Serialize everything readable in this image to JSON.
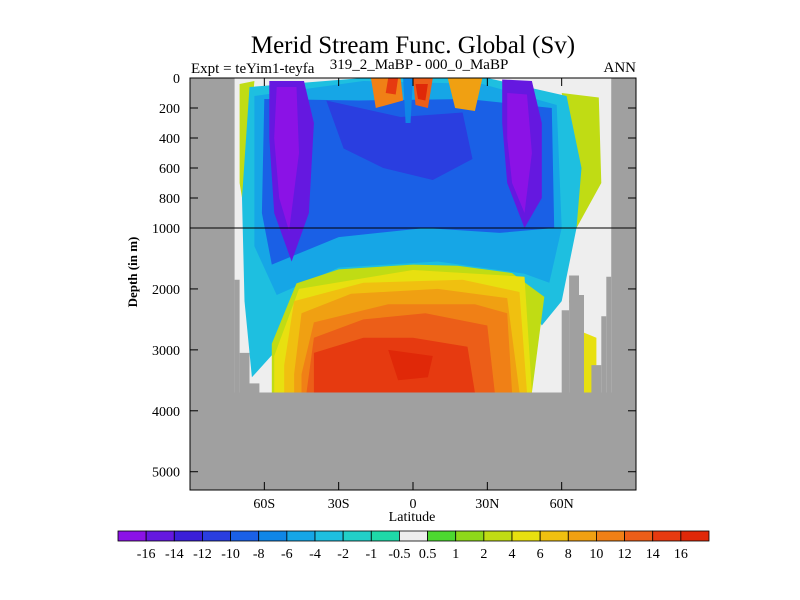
{
  "chart_data": {
    "type": "heatmap",
    "title": "Merid Stream Func. Global (Sv)",
    "subtitle_left": "Expt = teYim1-teyfa",
    "subtitle_center": "319_2_MaBP - 000_0_MaBP",
    "subtitle_right": "ANN",
    "xlabel": "Latitude",
    "ylabel": "Depth (in m)",
    "x_range": [
      -90,
      90
    ],
    "x_ticks": [
      {
        "value": -60,
        "label": "60S"
      },
      {
        "value": -30,
        "label": "30S"
      },
      {
        "value": 0,
        "label": "0"
      },
      {
        "value": 30,
        "label": "30N"
      },
      {
        "value": 60,
        "label": "60N"
      }
    ],
    "y_upper": {
      "range": [
        0,
        1000
      ],
      "ticks": [
        0,
        200,
        400,
        600,
        800,
        1000
      ]
    },
    "y_lower": {
      "range": [
        1000,
        5300
      ],
      "ticks": [
        2000,
        3000,
        4000,
        5000
      ]
    },
    "reference_line_depth": 1000,
    "missing_color": "#a0a0a0",
    "colorbar": {
      "labels": [
        "-16",
        "-14",
        "-12",
        "-10",
        "-8",
        "-6",
        "-4",
        "-2",
        "-1",
        "-0.5",
        "0.5",
        "1",
        "2",
        "4",
        "6",
        "8",
        "10",
        "12",
        "14",
        "16"
      ],
      "colors": [
        "#8b12e6",
        "#6518e0",
        "#3b1fd8",
        "#2a3ee0",
        "#1a60e6",
        "#0f86e6",
        "#16a6e6",
        "#1ebfe0",
        "#22cfc8",
        "#1fd8a8",
        "#eeeeee",
        "#4cd830",
        "#8ed81a",
        "#c0dc14",
        "#e8e010",
        "#f0c010",
        "#f0a012",
        "#f08016",
        "#ec5e18",
        "#e63a10",
        "#e02808"
      ]
    },
    "cells": [
      {
        "value": 0,
        "polygon": [
          [
            -72,
            0
          ],
          [
            80,
            0
          ],
          [
            80,
            3700
          ],
          [
            -72,
            3700
          ]
        ]
      },
      {
        "value": 3,
        "polygon": [
          [
            -70,
            40
          ],
          [
            -64,
            20
          ],
          [
            -66,
            400
          ],
          [
            -68,
            900
          ],
          [
            -70,
            700
          ]
        ]
      },
      {
        "value": 3,
        "polygon": [
          [
            60,
            100
          ],
          [
            75,
            130
          ],
          [
            76,
            700
          ],
          [
            66,
            1000
          ],
          [
            64,
            400
          ]
        ]
      },
      {
        "value": -3,
        "polygon": [
          [
            -66,
            60
          ],
          [
            -20,
            0
          ],
          [
            30,
            0
          ],
          [
            62,
            120
          ],
          [
            68,
            600
          ],
          [
            66,
            1000
          ],
          [
            60,
            2200
          ],
          [
            52,
            2600
          ],
          [
            42,
            1900
          ],
          [
            20,
            1660
          ],
          [
            0,
            1650
          ],
          [
            -20,
            1780
          ],
          [
            -40,
            1900
          ],
          [
            -55,
            3000
          ],
          [
            -65,
            3450
          ],
          [
            -68,
            2200
          ],
          [
            -69,
            800
          ]
        ]
      },
      {
        "value": -6,
        "polygon": [
          [
            -64,
            120
          ],
          [
            -20,
            20
          ],
          [
            28,
            40
          ],
          [
            58,
            180
          ],
          [
            60,
            1000
          ],
          [
            55,
            1900
          ],
          [
            45,
            1750
          ],
          [
            10,
            1550
          ],
          [
            -30,
            1650
          ],
          [
            -55,
            2100
          ],
          [
            -64,
            1300
          ]
        ]
      },
      {
        "value": -9,
        "polygon": [
          [
            -60,
            140
          ],
          [
            -22,
            150
          ],
          [
            22,
            140
          ],
          [
            56,
            200
          ],
          [
            57,
            1000
          ],
          [
            35,
            1080
          ],
          [
            5,
            1000
          ],
          [
            -30,
            1150
          ],
          [
            -57,
            1600
          ],
          [
            -61,
            900
          ]
        ]
      },
      {
        "value": -11,
        "polygon": [
          [
            -35,
            150
          ],
          [
            -5,
            260
          ],
          [
            20,
            230
          ],
          [
            24,
            540
          ],
          [
            8,
            680
          ],
          [
            -12,
            600
          ],
          [
            -28,
            470
          ]
        ]
      },
      {
        "value": -15,
        "polygon": [
          [
            -58,
            20
          ],
          [
            -44,
            20
          ],
          [
            -40,
            300
          ],
          [
            -42,
            900
          ],
          [
            -49,
            1550
          ],
          [
            -56,
            900
          ],
          [
            -58,
            400
          ]
        ]
      },
      {
        "value": -15,
        "polygon": [
          [
            36,
            10
          ],
          [
            48,
            20
          ],
          [
            52,
            300
          ],
          [
            52,
            800
          ],
          [
            45,
            1000
          ],
          [
            38,
            700
          ],
          [
            36,
            300
          ]
        ]
      },
      {
        "value": -17,
        "polygon": [
          [
            -55,
            60
          ],
          [
            -47,
            60
          ],
          [
            -46,
            500
          ],
          [
            -50,
            1050
          ],
          [
            -54,
            800
          ],
          [
            -56,
            400
          ]
        ]
      },
      {
        "value": -17,
        "polygon": [
          [
            38,
            100
          ],
          [
            46,
            110
          ],
          [
            48,
            500
          ],
          [
            45,
            900
          ],
          [
            40,
            700
          ],
          [
            38,
            400
          ]
        ]
      },
      {
        "value": 3,
        "polygon": [
          [
            -47,
            1910
          ],
          [
            -30,
            1680
          ],
          [
            0,
            1600
          ],
          [
            18,
            1620
          ],
          [
            40,
            1740
          ],
          [
            53,
            2130
          ],
          [
            48,
            3700
          ],
          [
            -57,
            3700
          ],
          [
            -57,
            2900
          ]
        ]
      },
      {
        "value": 5,
        "polygon": [
          [
            -46,
            2000
          ],
          [
            0,
            1690
          ],
          [
            45,
            1800
          ],
          [
            48,
            3700
          ],
          [
            -56,
            3700
          ],
          [
            -56,
            3100
          ]
        ]
      },
      {
        "value": 7,
        "polygon": [
          [
            -48,
            2200
          ],
          [
            -20,
            1900
          ],
          [
            20,
            1850
          ],
          [
            43,
            2050
          ],
          [
            46,
            3700
          ],
          [
            -52,
            3700
          ],
          [
            -52,
            3250
          ]
        ]
      },
      {
        "value": 9,
        "polygon": [
          [
            -45,
            2400
          ],
          [
            -25,
            2080
          ],
          [
            10,
            2000
          ],
          [
            38,
            2150
          ],
          [
            43,
            3700
          ],
          [
            -48,
            3700
          ],
          [
            -48,
            3400
          ]
        ]
      },
      {
        "value": 11,
        "polygon": [
          [
            -40,
            2550
          ],
          [
            -10,
            2250
          ],
          [
            25,
            2250
          ],
          [
            38,
            2400
          ],
          [
            40,
            3700
          ],
          [
            -45,
            3700
          ],
          [
            -45,
            3400
          ]
        ]
      },
      {
        "value": 13,
        "polygon": [
          [
            -40,
            2800
          ],
          [
            -20,
            2500
          ],
          [
            5,
            2400
          ],
          [
            30,
            2600
          ],
          [
            33,
            3700
          ],
          [
            -43,
            3700
          ]
        ]
      },
      {
        "value": 15,
        "polygon": [
          [
            -40,
            3050
          ],
          [
            -20,
            2800
          ],
          [
            0,
            2800
          ],
          [
            22,
            2950
          ],
          [
            25,
            3700
          ],
          [
            -40,
            3700
          ]
        ]
      },
      {
        "value": 17,
        "polygon": [
          [
            -10,
            3000
          ],
          [
            8,
            3100
          ],
          [
            6,
            3450
          ],
          [
            -6,
            3500
          ]
        ]
      },
      {
        "value": 10,
        "polygon": [
          [
            -17,
            0
          ],
          [
            -5,
            0
          ],
          [
            -4,
            150
          ],
          [
            -15,
            200
          ]
        ]
      },
      {
        "value": 15,
        "polygon": [
          [
            -10,
            0
          ],
          [
            -6,
            0
          ],
          [
            -7,
            110
          ],
          [
            -11,
            100
          ]
        ]
      },
      {
        "value": -8,
        "polygon": [
          [
            -4,
            0
          ],
          [
            0,
            0
          ],
          [
            -1,
            300
          ],
          [
            -3,
            300
          ]
        ]
      },
      {
        "value": 12,
        "polygon": [
          [
            0,
            0
          ],
          [
            8,
            0
          ],
          [
            6,
            200
          ],
          [
            1,
            180
          ]
        ]
      },
      {
        "value": 17,
        "polygon": [
          [
            1,
            40
          ],
          [
            6,
            40
          ],
          [
            5,
            150
          ],
          [
            2,
            140
          ]
        ]
      },
      {
        "value": 8,
        "polygon": [
          [
            14,
            0
          ],
          [
            28,
            0
          ],
          [
            25,
            220
          ],
          [
            17,
            200
          ]
        ]
      },
      {
        "value": 0,
        "polygon": [
          [
            65,
            1900
          ],
          [
            77,
            1800
          ],
          [
            78,
            2700
          ],
          [
            68,
            2600
          ]
        ]
      },
      {
        "value": 3,
        "polygon": [
          [
            63,
            2200
          ],
          [
            65,
            1900
          ],
          [
            68,
            2600
          ],
          [
            66,
            3000
          ]
        ]
      },
      {
        "value": 5,
        "polygon": [
          [
            68,
            2700
          ],
          [
            74,
            2800
          ],
          [
            74,
            3700
          ],
          [
            68,
            3700
          ]
        ]
      }
    ],
    "mask": [
      {
        "polygon": [
          [
            -90,
            0
          ],
          [
            -72,
            0
          ],
          [
            -72,
            3700
          ],
          [
            -90,
            3700
          ]
        ]
      },
      {
        "polygon": [
          [
            80,
            0
          ],
          [
            90,
            0
          ],
          [
            90,
            3700
          ],
          [
            80,
            3700
          ]
        ]
      },
      {
        "polygon": [
          [
            -90,
            3700
          ],
          [
            90,
            3700
          ],
          [
            90,
            5300
          ],
          [
            -90,
            5300
          ]
        ]
      },
      {
        "polygon": [
          [
            -72,
            1850
          ],
          [
            -70,
            1850
          ],
          [
            -70,
            3700
          ],
          [
            -72,
            3700
          ]
        ]
      },
      {
        "polygon": [
          [
            -70,
            3050
          ],
          [
            -66,
            3050
          ],
          [
            -66,
            3700
          ],
          [
            -70,
            3700
          ]
        ]
      },
      {
        "polygon": [
          [
            -66,
            3550
          ],
          [
            -62,
            3550
          ],
          [
            -62,
            3700
          ],
          [
            -66,
            3700
          ]
        ]
      },
      {
        "polygon": [
          [
            60,
            2350
          ],
          [
            63,
            2350
          ],
          [
            63,
            3700
          ],
          [
            60,
            3700
          ]
        ]
      },
      {
        "polygon": [
          [
            63,
            1780
          ],
          [
            67,
            1780
          ],
          [
            67,
            3700
          ],
          [
            63,
            3700
          ]
        ]
      },
      {
        "polygon": [
          [
            67,
            2100
          ],
          [
            69,
            2100
          ],
          [
            69,
            3700
          ],
          [
            67,
            3700
          ]
        ]
      },
      {
        "polygon": [
          [
            72,
            3250
          ],
          [
            76,
            3250
          ],
          [
            76,
            3700
          ],
          [
            72,
            3700
          ]
        ]
      },
      {
        "polygon": [
          [
            76,
            2450
          ],
          [
            78,
            2450
          ],
          [
            78,
            3700
          ],
          [
            76,
            3700
          ]
        ]
      },
      {
        "polygon": [
          [
            78,
            1800
          ],
          [
            80,
            1800
          ],
          [
            80,
            3700
          ],
          [
            78,
            3700
          ]
        ]
      }
    ]
  }
}
